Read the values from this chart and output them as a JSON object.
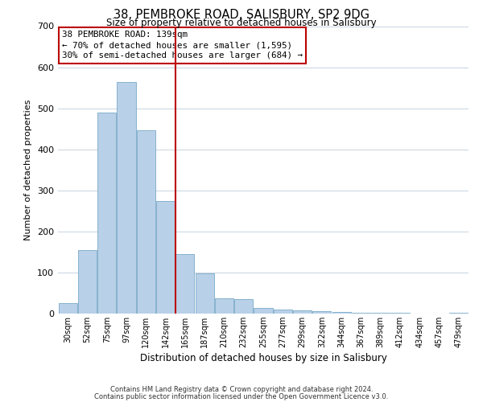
{
  "title": "38, PEMBROKE ROAD, SALISBURY, SP2 9DG",
  "subtitle": "Size of property relative to detached houses in Salisbury",
  "xlabel": "Distribution of detached houses by size in Salisbury",
  "ylabel": "Number of detached properties",
  "categories": [
    "30sqm",
    "52sqm",
    "75sqm",
    "97sqm",
    "120sqm",
    "142sqm",
    "165sqm",
    "187sqm",
    "210sqm",
    "232sqm",
    "255sqm",
    "277sqm",
    "299sqm",
    "322sqm",
    "344sqm",
    "367sqm",
    "389sqm",
    "412sqm",
    "434sqm",
    "457sqm",
    "479sqm"
  ],
  "values": [
    25,
    155,
    490,
    563,
    447,
    275,
    145,
    98,
    37,
    35,
    14,
    10,
    7,
    5,
    3,
    2,
    1,
    1,
    0,
    0,
    2
  ],
  "bar_color": "#b8d0e8",
  "bar_edgecolor": "#7aaac8",
  "vline_x": 5.5,
  "vline_color": "#bb0000",
  "annotation_title": "38 PEMBROKE ROAD: 139sqm",
  "annotation_line1": "← 70% of detached houses are smaller (1,595)",
  "annotation_line2": "30% of semi-detached houses are larger (684) →",
  "annotation_box_edgecolor": "#bb0000",
  "ylim": [
    0,
    700
  ],
  "yticks": [
    0,
    100,
    200,
    300,
    400,
    500,
    600,
    700
  ],
  "footnote1": "Contains HM Land Registry data © Crown copyright and database right 2024.",
  "footnote2": "Contains public sector information licensed under the Open Government Licence v3.0.",
  "background_color": "#ffffff",
  "grid_color": "#ccd8e4"
}
